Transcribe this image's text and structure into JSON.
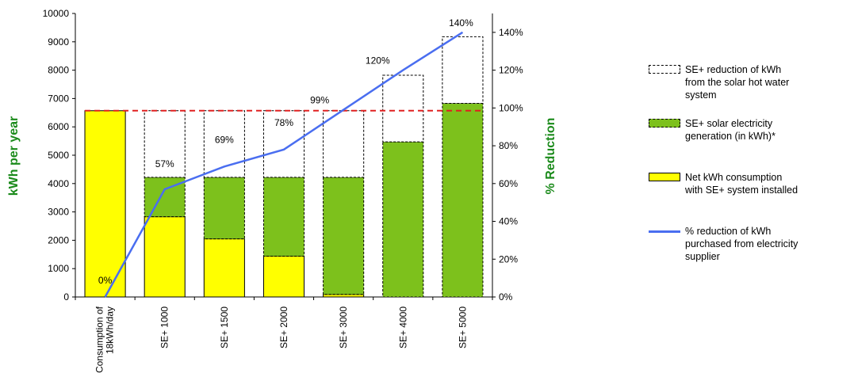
{
  "chart_data": {
    "type": "bar",
    "categories": [
      "Consumption of 18kWh/day",
      "SE+ 1000",
      "SE+ 1500",
      "SE+ 2000",
      "SE+ 3000",
      "SE+ 4000",
      "SE+ 5000"
    ],
    "category_labels": [
      [
        "Consumption of",
        "18kWh/day"
      ],
      [
        "SE+ 1000"
      ],
      [
        "SE+ 1500"
      ],
      [
        "SE+ 2000"
      ],
      [
        "SE+ 3000"
      ],
      [
        "SE+ 4000"
      ],
      [
        "SE+ 5000"
      ]
    ],
    "ylabel": "kWh per year",
    "y2label": "% Reduction",
    "ylim": [
      0,
      10000
    ],
    "y_ticks": [
      "0",
      "1000",
      "2000",
      "3000",
      "4000",
      "5000",
      "6000",
      "7000",
      "8000",
      "9000",
      "10000"
    ],
    "y2lim": [
      0,
      150
    ],
    "y2_ticks": [
      "0%",
      "20%",
      "40%",
      "60%",
      "80%",
      "100%",
      "120%",
      "140%"
    ],
    "baseline_consumption": 6570,
    "baseline_color": "#e02020",
    "series": [
      {
        "name": "Net kWh consumption with SE+ system installed",
        "legend_label": "Net kWh consumption\nwith SE+ system installed",
        "type": "bar-stack",
        "color": "#ffff00",
        "values": [
          6570,
          2830,
          2050,
          1440,
          90,
          0,
          0
        ]
      },
      {
        "name": "SE+ solar electricity generation (in kWh)*",
        "legend_label": "SE+ solar electricity\ngeneration (in kWh)*",
        "type": "bar-stack",
        "color": "#7dc11c",
        "values": [
          0,
          1390,
          2170,
          2780,
          4130,
          5470,
          6830
        ]
      },
      {
        "name": "SE+ reduction of kWh from the solar hot water system",
        "legend_label": "SE+ reduction of kWh\nfrom the solar hot water\nsystem",
        "type": "bar-stack",
        "color": "#ffffff",
        "values": [
          0,
          2350,
          2350,
          2350,
          2350,
          2350,
          2350
        ]
      },
      {
        "name": "% reduction of kWh purchased from electricity supplier",
        "legend_label": "% reduction of kWh\npurchased from electricity\nsupplier",
        "type": "line",
        "axis": "right",
        "color": "#4a6ef0",
        "values": [
          0,
          57,
          69,
          78,
          99,
          120,
          140
        ],
        "labels": [
          "0%",
          "57%",
          "69%",
          "78%",
          "99%",
          "120%",
          "140%"
        ]
      }
    ]
  }
}
